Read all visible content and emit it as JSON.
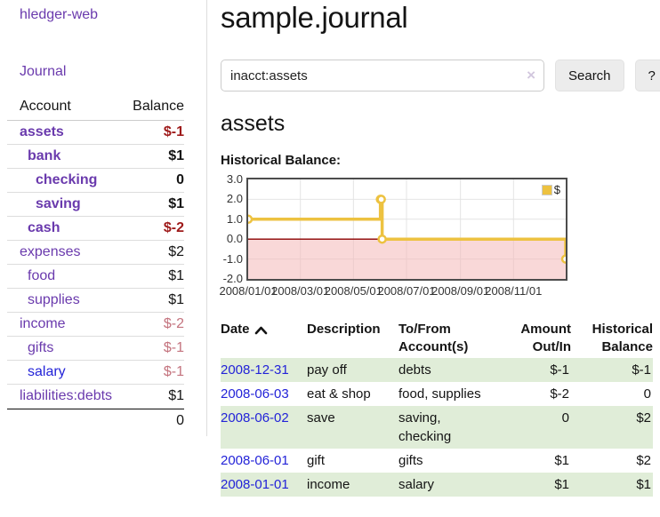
{
  "colors": {
    "link_purple": "#6a3aad",
    "link_blue": "#2323d8",
    "negative_dark": "#9e1a1a",
    "negative_soft": "#c4737e",
    "negative_table": "#8f1d1d",
    "row_green": "#e0edd8",
    "series_gold": "#edc240"
  },
  "sidebar": {
    "app_title": "hledger-web",
    "journal_label": "Journal",
    "accounts_table": {
      "headers": {
        "account": "Account",
        "balance": "Balance"
      },
      "rows": [
        {
          "name": "assets",
          "balance": "$-1",
          "indent": 1,
          "bold": true,
          "name_color": "purple",
          "balance_color": "red"
        },
        {
          "name": "bank",
          "balance": "$1",
          "indent": 2,
          "bold": true,
          "name_color": "purple",
          "balance_color": "black"
        },
        {
          "name": "checking",
          "balance": "0",
          "indent": 3,
          "bold": true,
          "name_color": "purple",
          "balance_color": "black"
        },
        {
          "name": "saving",
          "balance": "$1",
          "indent": 3,
          "bold": true,
          "name_color": "purple",
          "balance_color": "black"
        },
        {
          "name": "cash",
          "balance": "$-2",
          "indent": 2,
          "bold": true,
          "name_color": "purple",
          "balance_color": "red"
        },
        {
          "name": "expenses",
          "balance": "$2",
          "indent": 1,
          "bold": false,
          "name_color": "purple",
          "balance_color": "black"
        },
        {
          "name": "food",
          "balance": "$1",
          "indent": 2,
          "bold": false,
          "name_color": "purple",
          "balance_color": "black"
        },
        {
          "name": "supplies",
          "balance": "$1",
          "indent": 2,
          "bold": false,
          "name_color": "purple",
          "balance_color": "black"
        },
        {
          "name": "income",
          "balance": "$-2",
          "indent": 1,
          "bold": false,
          "name_color": "purple",
          "balance_color": "pink"
        },
        {
          "name": "gifts",
          "balance": "$-1",
          "indent": 2,
          "bold": false,
          "name_color": "purple",
          "balance_color": "pink"
        },
        {
          "name": "salary",
          "balance": "$-1",
          "indent": 2,
          "bold": false,
          "name_color": "blue",
          "balance_color": "pink"
        },
        {
          "name": "liabilities:debts",
          "balance": "$1",
          "indent": 1,
          "bold": false,
          "name_color": "purple",
          "balance_color": "black"
        }
      ],
      "total": "0"
    }
  },
  "main": {
    "title": "sample.journal",
    "search": {
      "value": "inacct:assets",
      "clear_icon": "×",
      "button_label": "Search",
      "help_label": "?"
    },
    "account_heading": "assets",
    "chart_heading": "Historical Balance:",
    "register_table": {
      "headers": {
        "date": "Date",
        "description": "Description",
        "accounts": "To/From Account(s)",
        "amount": "Amount Out/In",
        "balance": "Historical Balance"
      },
      "sort": {
        "column": "date",
        "direction": "ascending"
      },
      "rows": [
        {
          "date": "2008-12-31",
          "description": "pay off",
          "accounts": "debts",
          "amount": "$-1",
          "balance": "$-1",
          "amount_negative": true,
          "balance_negative": true
        },
        {
          "date": "2008-06-03",
          "description": "eat & shop",
          "accounts": "food, supplies",
          "amount": "$-2",
          "balance": "0",
          "amount_negative": true,
          "balance_negative": false
        },
        {
          "date": "2008-06-02",
          "description": "save",
          "accounts": "saving, checking",
          "amount": "0",
          "balance": "$2",
          "amount_negative": false,
          "balance_negative": false
        },
        {
          "date": "2008-06-01",
          "description": "gift",
          "accounts": "gifts",
          "amount": "$1",
          "balance": "$2",
          "amount_negative": false,
          "balance_negative": false
        },
        {
          "date": "2008-01-01",
          "description": "income",
          "accounts": "salary",
          "amount": "$1",
          "balance": "$1",
          "amount_negative": false,
          "balance_negative": false
        }
      ]
    }
  },
  "chart_data": {
    "type": "line",
    "step": true,
    "title": "Historical Balance:",
    "series": [
      {
        "name": "$",
        "color": "#edc240",
        "points": [
          [
            "2008-01-01",
            1
          ],
          [
            "2008-06-01",
            2
          ],
          [
            "2008-06-02",
            2
          ],
          [
            "2008-06-03",
            0
          ],
          [
            "2008-12-31",
            -1
          ]
        ]
      }
    ],
    "xlim": [
      "2008-01-01",
      "2008-12-31"
    ],
    "ylim": [
      -2,
      3
    ],
    "x_ticks": [
      "2008/01/01",
      "2008/03/01",
      "2008/05/01",
      "2008/07/01",
      "2008/09/01",
      "2008/11/01"
    ],
    "y_ticks": [
      "3.0",
      "2.0",
      "1.0",
      "0.0",
      "-1.0",
      "-2.0"
    ],
    "grid": true,
    "zero_line_color": "#8b0000",
    "negative_region_fill": "#f4b8b8",
    "legend_position": "top-right"
  }
}
